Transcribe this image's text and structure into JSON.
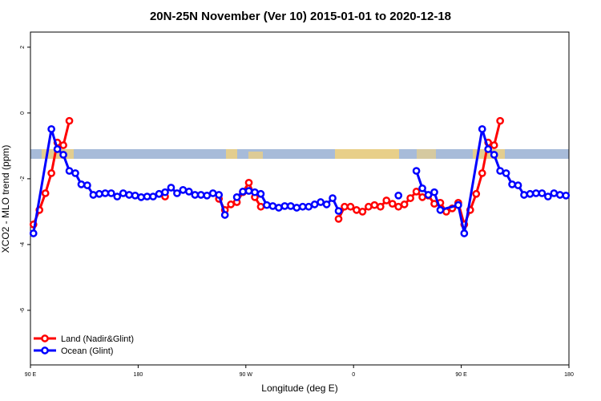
{
  "chart_data": {
    "type": "line",
    "title": "20N-25N November (Ver 10)   2015-01-01 to 2020-12-18",
    "x_label": "Longitude (deg E)",
    "y_label": "XCO2 - MLO trend (ppm)",
    "xlim": [
      90,
      540
    ],
    "ylim": [
      -7.66,
      2.46
    ],
    "xticks": [
      {
        "value": 90,
        "label": "90 E"
      },
      180,
      {
        "value": 270,
        "label": "90 W"
      },
      {
        "value": 360,
        "label": "0"
      },
      {
        "value": 450,
        "label": "90 E"
      },
      {
        "value": 540,
        "label": "180"
      }
    ],
    "yticks": [
      2,
      0,
      -2,
      -4,
      -6
    ],
    "legend": "bottom-left",
    "series": [
      {
        "name": "Land (Nadir&Glint)",
        "color": "#ff0000",
        "x": [
          92.5,
          97.5,
          102.5,
          107.5,
          112.5,
          117.5,
          122.5,
          127.5,
          202.5,
          207.5,
          247.5,
          252.5,
          257.5,
          262.5,
          267.5,
          272.5,
          277.5,
          282.5,
          287.5,
          347.5,
          352.5,
          357.5,
          362.5,
          367.5,
          372.5,
          377.5,
          382.5,
          387.5,
          392.5,
          397.5,
          402.5,
          407.5,
          412.5,
          417.5,
          422.5,
          427.5,
          432.5,
          437.5,
          442.5,
          447.5,
          452.5,
          457.5,
          462.5,
          467.5,
          472.5,
          477.5,
          482.5
        ],
        "values": [
          -3.39,
          -2.95,
          -2.44,
          -1.83,
          -0.9,
          -0.98,
          -0.24,
          null,
          -2.54,
          null,
          -2.61,
          -2.95,
          -2.78,
          -2.71,
          -2.41,
          -2.12,
          -2.56,
          -2.85,
          null,
          -3.22,
          -2.85,
          -2.85,
          -2.95,
          -3.0,
          -2.85,
          -2.8,
          -2.85,
          -2.66,
          -2.76,
          -2.85,
          -2.78,
          -2.59,
          -2.39,
          -2.56,
          -2.51,
          -2.76,
          -2.73,
          -3.0,
          -2.9,
          -2.73,
          -3.39,
          -2.95,
          -2.46,
          -1.83,
          -0.9,
          -0.98,
          -0.24
        ]
      },
      {
        "name": "Ocean (Glint)",
        "color": "#0000ff",
        "x": [
          92.5,
          107.5,
          112.5,
          117.5,
          122.5,
          127.5,
          132.5,
          137.5,
          142.5,
          147.5,
          152.5,
          157.5,
          162.5,
          167.5,
          172.5,
          177.5,
          182.5,
          187.5,
          192.5,
          197.5,
          202.5,
          207.5,
          212.5,
          217.5,
          222.5,
          227.5,
          232.5,
          237.5,
          242.5,
          247.5,
          252.5,
          257.5,
          262.5,
          267.5,
          272.5,
          277.5,
          282.5,
          287.5,
          292.5,
          297.5,
          302.5,
          307.5,
          312.5,
          317.5,
          322.5,
          327.5,
          332.5,
          337.5,
          342.5,
          347.5,
          352.5,
          397.5,
          402.5,
          412.5,
          417.5,
          422.5,
          427.5,
          432.5,
          447.5,
          452.5,
          467.5,
          472.5,
          477.5,
          482.5,
          487.5,
          492.5,
          497.5,
          502.5,
          507.5,
          512.5,
          517.5,
          522.5,
          527.5,
          532.5,
          537.5
        ],
        "values": [
          -3.66,
          -0.49,
          -1.1,
          -1.27,
          -1.76,
          -1.83,
          -2.17,
          -2.2,
          -2.49,
          -2.46,
          -2.44,
          -2.44,
          -2.54,
          -2.44,
          -2.49,
          -2.51,
          -2.56,
          -2.54,
          -2.54,
          -2.46,
          -2.41,
          -2.27,
          -2.44,
          -2.34,
          -2.39,
          -2.49,
          -2.49,
          -2.51,
          -2.44,
          -2.49,
          -3.1,
          null,
          -2.56,
          -2.39,
          -2.37,
          -2.41,
          -2.46,
          -2.8,
          -2.83,
          -2.88,
          -2.83,
          -2.83,
          -2.88,
          -2.85,
          -2.85,
          -2.78,
          -2.71,
          -2.78,
          -2.59,
          -2.98,
          null,
          -2.51,
          null,
          -1.76,
          -2.29,
          -2.49,
          -2.41,
          -2.95,
          -2.8,
          -3.66,
          -0.49,
          -1.1,
          -1.27,
          -1.76,
          -1.83,
          -2.17,
          -2.2,
          -2.49,
          -2.46,
          -2.44,
          -2.44,
          -2.54,
          -2.44,
          -2.49,
          -2.51
        ]
      }
    ]
  }
}
